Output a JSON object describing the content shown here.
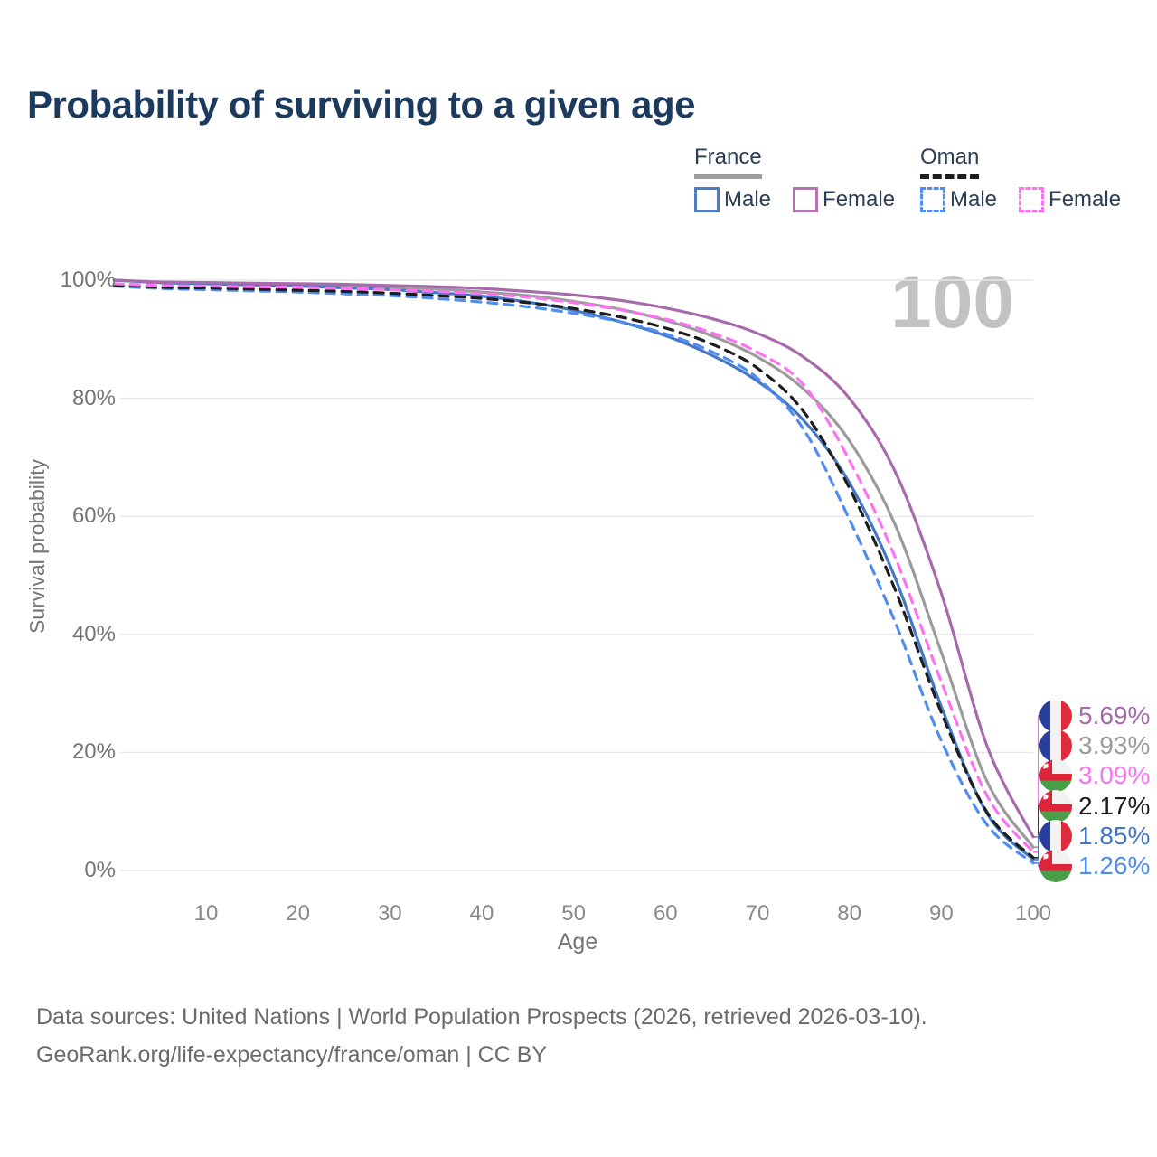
{
  "title": "Probability of surviving to a given age",
  "watermark_age": "100",
  "legend": {
    "groups": [
      {
        "name": "France",
        "line_style": "solid",
        "line_color": "#9e9e9e",
        "items": [
          {
            "label": "Male",
            "color": "#4d7dc4"
          },
          {
            "label": "Female",
            "color": "#b873b3"
          }
        ]
      },
      {
        "name": "Oman",
        "line_style": "dashed",
        "line_color": "#1d1d1d",
        "items": [
          {
            "label": "Male",
            "color": "#4f8df3"
          },
          {
            "label": "Female",
            "color": "#fd72f2"
          }
        ]
      }
    ]
  },
  "axes": {
    "xlabel": "Age",
    "ylabel": "Survival probability",
    "x_ticks": [
      10,
      20,
      30,
      40,
      50,
      60,
      70,
      80,
      90,
      100
    ],
    "y_ticks": [
      "0%",
      "20%",
      "40%",
      "60%",
      "80%",
      "100%"
    ]
  },
  "chart_data": {
    "type": "line",
    "title": "Probability of surviving to a given age",
    "xlabel": "Age",
    "ylabel": "Survival probability",
    "xlim": [
      0,
      100
    ],
    "ylim": [
      0,
      100
    ],
    "grid": "horizontal-only",
    "legend_position": "top-right",
    "x": [
      0,
      5,
      10,
      15,
      20,
      25,
      30,
      35,
      40,
      45,
      50,
      55,
      60,
      65,
      70,
      75,
      80,
      85,
      90,
      95,
      100
    ],
    "series": [
      {
        "name": "France",
        "country": "france",
        "dash": "solid",
        "color": "#9b9b9b",
        "values": [
          100,
          99.6,
          99.5,
          99.4,
          99.2,
          99.0,
          98.8,
          98.5,
          98.0,
          97.4,
          96.4,
          95.1,
          93.2,
          90.6,
          87.0,
          81.6,
          72.8,
          58.5,
          37.0,
          15.0,
          3.93
        ],
        "end_label": "3.93%"
      },
      {
        "name": "France Male",
        "country": "france",
        "dash": "solid",
        "color": "#4478c4",
        "values": [
          100,
          99.6,
          99.4,
          99.2,
          99.0,
          98.7,
          98.4,
          97.9,
          97.3,
          96.3,
          94.9,
          93.0,
          90.6,
          87.3,
          82.9,
          76.3,
          65.7,
          49.5,
          27.8,
          9.6,
          1.85
        ],
        "end_label": "1.85%"
      },
      {
        "name": "Oman Male",
        "country": "oman",
        "dash": "dashed",
        "color": "#4f8df3",
        "values": [
          99.0,
          98.6,
          98.4,
          98.2,
          98.0,
          97.7,
          97.4,
          96.9,
          96.3,
          95.5,
          94.4,
          93.0,
          90.9,
          87.9,
          83.4,
          74.8,
          59.5,
          42.0,
          22.0,
          7.7,
          1.26
        ],
        "end_label": "1.26%"
      },
      {
        "name": "Oman",
        "country": "oman",
        "dash": "dashed",
        "color": "#1d1d1d",
        "values": [
          99.2,
          98.8,
          98.7,
          98.5,
          98.3,
          98.1,
          97.8,
          97.4,
          96.9,
          96.2,
          95.2,
          93.8,
          91.9,
          89.2,
          85.1,
          77.8,
          64.8,
          47.5,
          26.8,
          9.8,
          2.17
        ],
        "end_label": "2.17%"
      },
      {
        "name": "Oman Female",
        "country": "oman",
        "dash": "dashed",
        "color": "#fd72f2",
        "values": [
          99.4,
          99.1,
          99.0,
          98.9,
          98.8,
          98.6,
          98.4,
          98.1,
          97.7,
          97.1,
          96.2,
          95.0,
          93.4,
          91.1,
          87.8,
          82.3,
          69.5,
          53.0,
          32.0,
          12.6,
          3.09
        ],
        "end_label": "3.09%"
      },
      {
        "name": "France Female",
        "country": "france",
        "dash": "solid",
        "color": "#a76bac",
        "values": [
          100,
          99.7,
          99.6,
          99.5,
          99.4,
          99.3,
          99.1,
          98.9,
          98.6,
          98.1,
          97.5,
          96.6,
          95.3,
          93.5,
          91.0,
          87.0,
          80.0,
          67.5,
          47.0,
          21.0,
          5.69
        ],
        "end_label": "5.69%"
      }
    ]
  },
  "end_labels": [
    {
      "text": "5.69%",
      "flag": "france",
      "color": "#a76bac",
      "series": "France Female"
    },
    {
      "text": "3.93%",
      "flag": "france",
      "color": "#9b9b9b",
      "series": "France"
    },
    {
      "text": "3.09%",
      "flag": "oman",
      "color": "#fd72f2",
      "series": "Oman Female"
    },
    {
      "text": "2.17%",
      "flag": "oman",
      "color": "#1d1d1d",
      "series": "Oman"
    },
    {
      "text": "1.85%",
      "flag": "france",
      "color": "#4478c4",
      "series": "France Male"
    },
    {
      "text": "1.26%",
      "flag": "oman",
      "color": "#4f8df3",
      "series": "Oman Male"
    }
  ],
  "flag_colors": {
    "france": {
      "blue": "#2a3e9e",
      "white": "#f2f2f2",
      "red": "#dd2c3c"
    },
    "oman": {
      "red": "#dd2438",
      "white": "#f2f2f2",
      "green": "#4a9e48"
    }
  },
  "footer": {
    "line1": "Data sources: United Nations | World Population Prospects (2026, retrieved 2026-03-10).",
    "line2": "GeoRank.org/life-expectancy/france/oman | CC BY"
  }
}
